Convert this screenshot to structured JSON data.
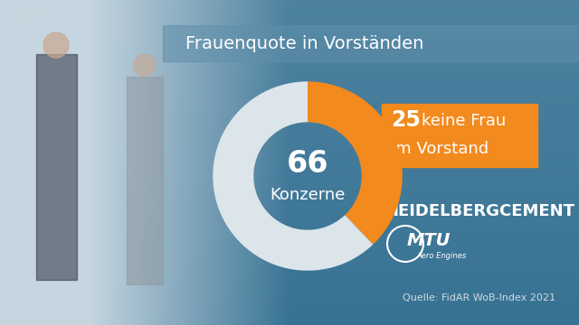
{
  "chart_data": {
    "type": "donut",
    "title": "Frauenquote in Vorständen",
    "categories": [
      "keine Frau\nim Vorstand",
      null
    ],
    "values": [
      25,
      41
    ],
    "colors": [
      "#f28a1e",
      "#dce5ea"
    ],
    "data_labels": true,
    "center_value": 66,
    "center_label": "Konzerne",
    "companies": [
      "HEIDELBERGCEMENT",
      "MTU Aero Engines"
    ],
    "source": "Quelle: FidAR WoB-Index 2021",
    "watermark": "ZDF"
  }
}
